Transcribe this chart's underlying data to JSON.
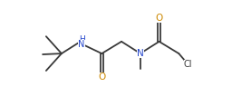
{
  "bg_color": "#ffffff",
  "line_color": "#3a3a3a",
  "bond_lw": 1.3,
  "text_color_N": "#2244cc",
  "text_color_O": "#cc8800",
  "text_color_Cl": "#3a3a3a",
  "text_color_H": "#2244cc",
  "font_size": 7.0,
  "fig_w": 2.56,
  "fig_h": 1.17,
  "xlim": [
    0,
    10.5
  ],
  "ylim": [
    0,
    4.5
  ]
}
